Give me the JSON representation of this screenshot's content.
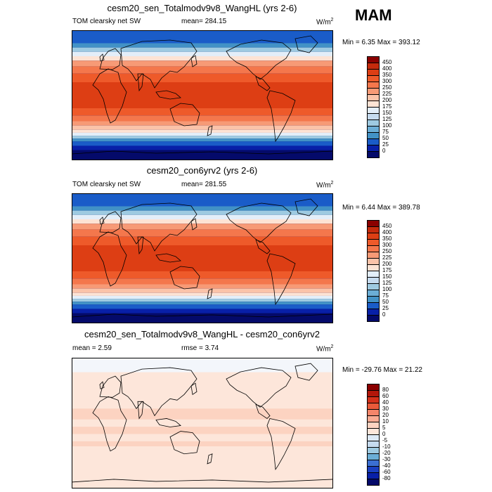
{
  "season": "MAM",
  "land_color": "none",
  "panels": [
    {
      "id": "top",
      "title": "cesm20_sen_Totalmodv9v8_WangHL (yrs 2-6)",
      "left_label": "TOM clearsky net SW",
      "center_label": "mean= 284.15",
      "units": "W/m",
      "units_sup": "2",
      "min_max": "Min =  6.35 Max = 393.12",
      "colorbar_labels": [
        "450",
        "400",
        "350",
        "300",
        "250",
        "225",
        "200",
        "175",
        "150",
        "125",
        "100",
        "75",
        "50",
        "25",
        "0"
      ],
      "colorbar_colors": [
        "#8b0000",
        "#c52a0c",
        "#dd3e14",
        "#ee5a2a",
        "#f4774c",
        "#f79a76",
        "#fbc3a9",
        "#fde3d4",
        "#e3eef9",
        "#c6dbef",
        "#9ecae1",
        "#6baed6",
        "#4292c6",
        "#1a5cc8",
        "#0820a8",
        "#040a6a"
      ],
      "bands": [
        {
          "lat": 90,
          "color": "#1a5cc8"
        },
        {
          "lat": 72,
          "color": "#4292c6"
        },
        {
          "lat": 66,
          "color": "#9ecae1"
        },
        {
          "lat": 60,
          "color": "#e3eef9"
        },
        {
          "lat": 54,
          "color": "#fde3d4"
        },
        {
          "lat": 48,
          "color": "#f79a76"
        },
        {
          "lat": 40,
          "color": "#f4774c"
        },
        {
          "lat": 30,
          "color": "#ee5a2a"
        },
        {
          "lat": 18,
          "color": "#dd3e14"
        },
        {
          "lat": -18,
          "color": "#ee5a2a"
        },
        {
          "lat": -28,
          "color": "#f4774c"
        },
        {
          "lat": -36,
          "color": "#f79a76"
        },
        {
          "lat": -42,
          "color": "#fbc3a9"
        },
        {
          "lat": -48,
          "color": "#fde3d4"
        },
        {
          "lat": -52,
          "color": "#e3eef9"
        },
        {
          "lat": -56,
          "color": "#9ecae1"
        },
        {
          "lat": -60,
          "color": "#4292c6"
        },
        {
          "lat": -64,
          "color": "#1a5cc8"
        },
        {
          "lat": -70,
          "color": "#0820a8"
        },
        {
          "lat": -76,
          "color": "#040a6a"
        }
      ]
    },
    {
      "id": "middle",
      "title": "cesm20_con6yrv2 (yrs 2-6)",
      "left_label": "TOM clearsky net SW",
      "center_label": "mean= 281.55",
      "units": "W/m",
      "units_sup": "2",
      "min_max": "Min =  6.44 Max = 389.78",
      "colorbar_labels": [
        "450",
        "400",
        "350",
        "300",
        "250",
        "225",
        "200",
        "175",
        "150",
        "125",
        "100",
        "75",
        "50",
        "25",
        "0"
      ],
      "colorbar_colors": [
        "#8b0000",
        "#c52a0c",
        "#dd3e14",
        "#ee5a2a",
        "#f4774c",
        "#f79a76",
        "#fbc3a9",
        "#fde3d4",
        "#e3eef9",
        "#c6dbef",
        "#9ecae1",
        "#6baed6",
        "#4292c6",
        "#1a5cc8",
        "#0820a8",
        "#040a6a"
      ],
      "bands": [
        {
          "lat": 90,
          "color": "#1a5cc8"
        },
        {
          "lat": 72,
          "color": "#4292c6"
        },
        {
          "lat": 66,
          "color": "#9ecae1"
        },
        {
          "lat": 60,
          "color": "#e3eef9"
        },
        {
          "lat": 54,
          "color": "#fde3d4"
        },
        {
          "lat": 48,
          "color": "#f79a76"
        },
        {
          "lat": 40,
          "color": "#f4774c"
        },
        {
          "lat": 30,
          "color": "#ee5a2a"
        },
        {
          "lat": 18,
          "color": "#dd3e14"
        },
        {
          "lat": -18,
          "color": "#ee5a2a"
        },
        {
          "lat": -28,
          "color": "#f4774c"
        },
        {
          "lat": -36,
          "color": "#f79a76"
        },
        {
          "lat": -42,
          "color": "#fbc3a9"
        },
        {
          "lat": -48,
          "color": "#fde3d4"
        },
        {
          "lat": -52,
          "color": "#e3eef9"
        },
        {
          "lat": -56,
          "color": "#9ecae1"
        },
        {
          "lat": -60,
          "color": "#4292c6"
        },
        {
          "lat": -64,
          "color": "#1a5cc8"
        },
        {
          "lat": -70,
          "color": "#0820a8"
        },
        {
          "lat": -76,
          "color": "#040a6a"
        }
      ]
    },
    {
      "id": "bottom",
      "title": "cesm20_sen_Totalmodv9v8_WangHL - cesm20_con6yrv2",
      "left_label": "mean =   2.59",
      "center_label": "rmse =   3.74",
      "units": "W/m",
      "units_sup": "2",
      "min_max": "Min = -29.76 Max =  21.22",
      "colorbar_labels": [
        "80",
        "60",
        "40",
        "30",
        "20",
        "10",
        "5",
        "0",
        "-5",
        "-10",
        "-20",
        "-30",
        "-40",
        "-60",
        "-80"
      ],
      "colorbar_colors": [
        "#8b0000",
        "#b3160a",
        "#d4301a",
        "#ea5a3a",
        "#f4856a",
        "#f9ab93",
        "#fcd3c1",
        "#fde6da",
        "#dde9f6",
        "#c6dbef",
        "#9ecae1",
        "#6baed6",
        "#3b6fd2",
        "#1a3fc0",
        "#0820a8",
        "#040a6a"
      ],
      "bands": [
        {
          "lat": 90,
          "color": "#f3f6fb"
        },
        {
          "lat": 70,
          "color": "#fde6da"
        },
        {
          "lat": 20,
          "color": "#fcd3c1"
        },
        {
          "lat": 5,
          "color": "#fde6da"
        },
        {
          "lat": -5,
          "color": "#fcd3c1"
        },
        {
          "lat": -15,
          "color": "#fde6da"
        },
        {
          "lat": -25,
          "color": "#fcd3c1"
        },
        {
          "lat": -32,
          "color": "#fde6da"
        }
      ]
    }
  ]
}
